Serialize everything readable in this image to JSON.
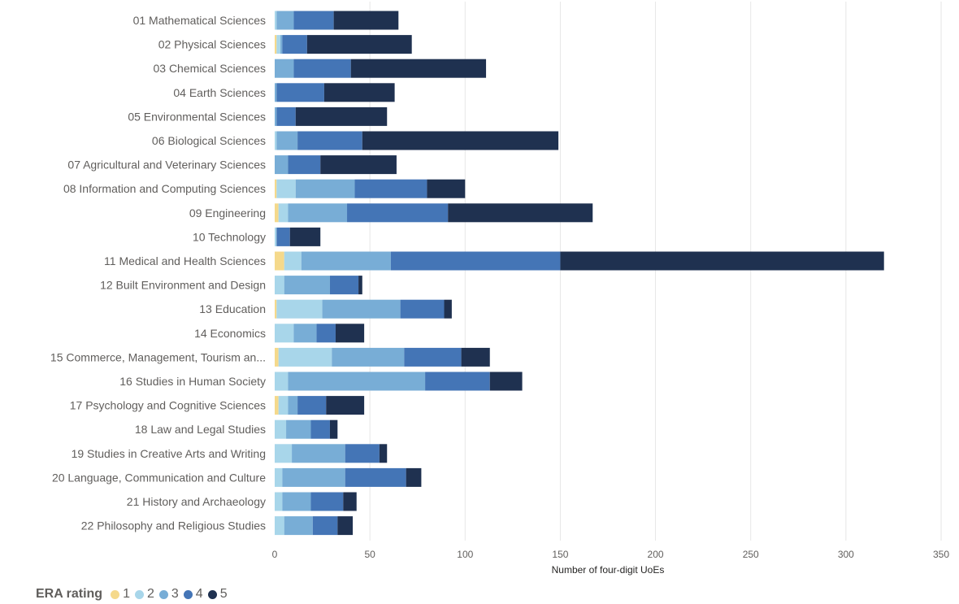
{
  "chart_data": {
    "type": "bar",
    "orientation": "horizontal",
    "stacked": true,
    "title": "",
    "xlabel": "Number of four-digit UoEs",
    "ylabel": "",
    "xlim": [
      0,
      350
    ],
    "xticks": [
      0,
      50,
      100,
      150,
      200,
      250,
      300,
      350
    ],
    "grid": true,
    "legend_position": "bottom-left",
    "categories": [
      "01 Mathematical Sciences",
      "02 Physical Sciences",
      "03 Chemical Sciences",
      "04 Earth Sciences",
      "05 Environmental Sciences",
      "06 Biological Sciences",
      "07 Agricultural and Veterinary Sciences",
      "08 Information and Computing Sciences",
      "09 Engineering",
      "10 Technology",
      "11 Medical and Health Sciences",
      "12 Built Environment and Design",
      "13 Education",
      "14 Economics",
      "15 Commerce, Management, Tourism an...",
      "16 Studies in Human Society",
      "17 Psychology and Cognitive Sciences",
      "18 Law and Legal Studies",
      "19 Studies in Creative Arts and Writing",
      "20 Language, Communication and Culture",
      "21 History and Archaeology",
      "22 Philosophy and Religious Studies"
    ],
    "series": [
      {
        "name": "1",
        "color": "#f5d98b",
        "values": [
          0,
          1,
          0,
          0,
          0,
          0,
          0,
          1,
          2,
          0,
          5,
          0,
          1,
          0,
          2,
          0,
          2,
          0,
          0,
          0,
          0,
          0
        ]
      },
      {
        "name": "2",
        "color": "#a8d6ea",
        "values": [
          1,
          2,
          0,
          0,
          0,
          1,
          0,
          10,
          5,
          1,
          9,
          5,
          24,
          10,
          28,
          7,
          5,
          6,
          9,
          4,
          4,
          5
        ]
      },
      {
        "name": "3",
        "color": "#78add6",
        "values": [
          9,
          1,
          10,
          1,
          1,
          11,
          7,
          31,
          31,
          0,
          47,
          24,
          41,
          12,
          38,
          72,
          5,
          13,
          28,
          33,
          15,
          15
        ]
      },
      {
        "name": "4",
        "color": "#4475b6",
        "values": [
          21,
          13,
          30,
          25,
          10,
          34,
          17,
          38,
          53,
          7,
          89,
          15,
          23,
          10,
          30,
          34,
          15,
          10,
          18,
          32,
          17,
          13
        ]
      },
      {
        "name": "5",
        "color": "#1f3150",
        "values": [
          34,
          55,
          71,
          37,
          48,
          103,
          40,
          20,
          76,
          16,
          170,
          2,
          4,
          15,
          15,
          17,
          20,
          4,
          4,
          8,
          7,
          8
        ]
      }
    ]
  },
  "legend": {
    "title": "ERA rating",
    "items": [
      {
        "label": "1",
        "color": "#f5d98b"
      },
      {
        "label": "2",
        "color": "#a8d6ea"
      },
      {
        "label": "3",
        "color": "#78add6"
      },
      {
        "label": "4",
        "color": "#4475b6"
      },
      {
        "label": "5",
        "color": "#1f3150"
      }
    ]
  }
}
